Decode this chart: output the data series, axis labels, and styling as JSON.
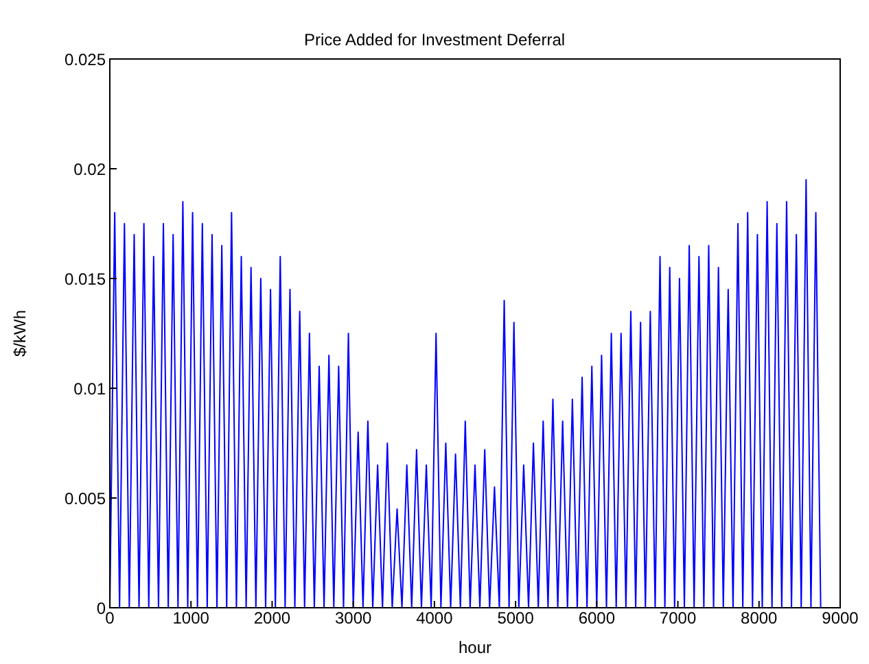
{
  "chart_data": {
    "type": "line",
    "title": "Price Added for Investment Deferral",
    "xlabel": "hour",
    "ylabel": "$/kWh",
    "xlim": [
      0,
      9000
    ],
    "xticks": [
      0,
      1000,
      2000,
      3000,
      4000,
      5000,
      6000,
      7000,
      8000,
      9000
    ],
    "ylim": [
      0,
      0.025
    ],
    "yticks": [
      0,
      0.005,
      0.01,
      0.015,
      0.02,
      0.025
    ],
    "marker": "none",
    "line_style": "solid",
    "series": [
      {
        "color": "#0000ff",
        "x": [
          0,
          60,
          120,
          180,
          240,
          300,
          360,
          420,
          480,
          540,
          600,
          660,
          720,
          780,
          840,
          900,
          960,
          1020,
          1080,
          1140,
          1200,
          1260,
          1320,
          1380,
          1440,
          1500,
          1560,
          1620,
          1680,
          1740,
          1800,
          1860,
          1920,
          1980,
          2040,
          2100,
          2160,
          2220,
          2280,
          2340,
          2400,
          2460,
          2520,
          2580,
          2640,
          2700,
          2760,
          2820,
          2880,
          2940,
          3000,
          3060,
          3120,
          3180,
          3240,
          3300,
          3360,
          3420,
          3480,
          3540,
          3600,
          3660,
          3720,
          3780,
          3840,
          3900,
          3960,
          4020,
          4080,
          4140,
          4200,
          4260,
          4320,
          4380,
          4440,
          4500,
          4560,
          4620,
          4680,
          4740,
          4800,
          4860,
          4920,
          4980,
          5040,
          5100,
          5160,
          5220,
          5280,
          5340,
          5400,
          5460,
          5520,
          5580,
          5640,
          5700,
          5760,
          5820,
          5880,
          5940,
          6000,
          6060,
          6120,
          6180,
          6240,
          6300,
          6360,
          6420,
          6480,
          6540,
          6600,
          6660,
          6720,
          6780,
          6840,
          6900,
          6960,
          7020,
          7080,
          7140,
          7200,
          7260,
          7320,
          7380,
          7440,
          7500,
          7560,
          7620,
          7680,
          7740,
          7800,
          7860,
          7920,
          7980,
          8040,
          8100,
          8160,
          8220,
          8280,
          8340,
          8400,
          8460,
          8520,
          8580,
          8640,
          8700,
          8760
        ],
        "values": [
          0,
          0.018,
          0,
          0.0175,
          0,
          0.017,
          0,
          0.0175,
          0,
          0.016,
          0,
          0.0175,
          0,
          0.017,
          0,
          0.0185,
          0,
          0.018,
          0,
          0.0175,
          0,
          0.017,
          0,
          0.0165,
          0,
          0.018,
          0,
          0.016,
          0,
          0.0155,
          0,
          0.015,
          0,
          0.0145,
          0,
          0.016,
          0,
          0.0145,
          0,
          0.0135,
          0,
          0.0125,
          0,
          0.011,
          0,
          0.0115,
          0,
          0.011,
          0,
          0.0125,
          0,
          0.008,
          0,
          0.0085,
          0,
          0.0065,
          0,
          0.0075,
          0,
          0.0045,
          0,
          0.0065,
          0,
          0.0072,
          0,
          0.0065,
          0,
          0.0125,
          0,
          0.0075,
          0,
          0.007,
          0,
          0.0085,
          0,
          0.0065,
          0,
          0.0072,
          0,
          0.0055,
          0,
          0.014,
          0,
          0.013,
          0,
          0.0065,
          0,
          0.0075,
          0,
          0.0085,
          0,
          0.0095,
          0,
          0.0085,
          0,
          0.0095,
          0,
          0.0105,
          0,
          0.011,
          0,
          0.0115,
          0,
          0.0125,
          0,
          0.0125,
          0,
          0.0135,
          0,
          0.013,
          0,
          0.0135,
          0,
          0.016,
          0,
          0.0155,
          0,
          0.015,
          0,
          0.0165,
          0,
          0.016,
          0,
          0.0165,
          0,
          0.0155,
          0,
          0.0145,
          0,
          0.0175,
          0,
          0.018,
          0,
          0.017,
          0,
          0.0185,
          0,
          0.0175,
          0,
          0.0185,
          0,
          0.017,
          0,
          0.0195,
          0,
          0.018,
          0
        ]
      }
    ]
  }
}
